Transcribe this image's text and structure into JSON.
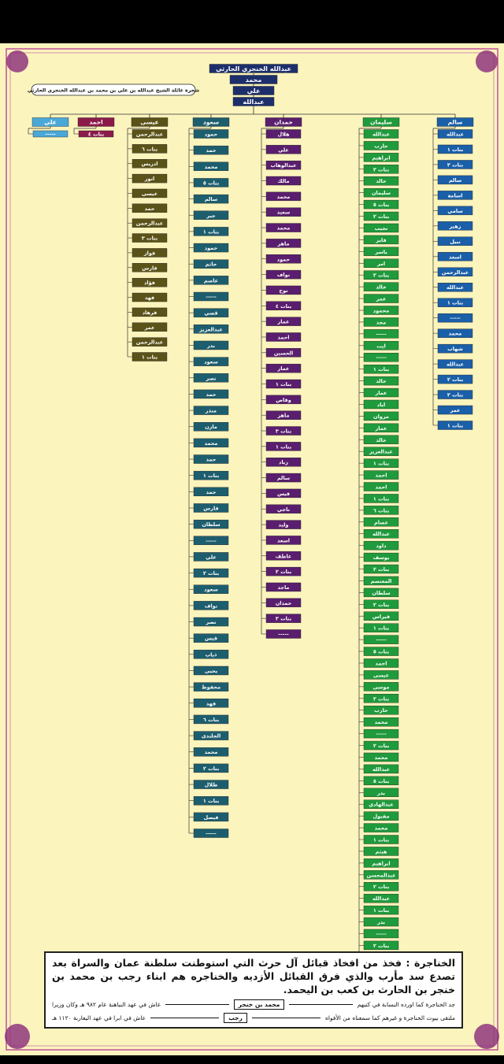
{
  "header": {
    "names": [
      "عبدالله الخنجري الحارثي",
      "محمد",
      "علي",
      "عبدالله"
    ],
    "subtitle": "شجرة عائلة الشيخ عبدالله بن علي بن محمد بن عبدالله الخنجري الحارثي"
  },
  "columns": [
    {
      "head": "سالم",
      "children": [
        "عبدالله",
        "بنات ١",
        "بنات ٢",
        "سالم",
        "اسامة",
        "سامي",
        "زهير",
        "نبيل",
        "اسعد",
        "عبدالرحمن",
        "عبدالله",
        "بنات ١",
        "-----",
        "محمد",
        "شهاب",
        "عبدالله",
        "بنات ٢",
        "بنات ٢",
        "عمر",
        "بنات ١"
      ]
    },
    {
      "head": "سليمان",
      "children": [
        "عبدالله",
        "حارب",
        "ابراهيم",
        "بنات ٢",
        "خالد",
        "سليمان",
        "بنات ٥",
        "بنات ٢",
        "نجيب",
        "فايز",
        "ياسر",
        "امر",
        "بنات ٢",
        "خالد",
        "عمر",
        "محمود",
        "مجد",
        "-----",
        "ايت",
        "-----",
        "بنات ١",
        "خالد",
        "عمار",
        "اياد",
        "مروان",
        "عمار",
        "خالد",
        "عبدالعزيز",
        "بنات ١",
        "احمد",
        "احمد",
        "بنات ١",
        "بنات ٦",
        "عصام",
        "عبدالله",
        "داود",
        "يوسف",
        "بنات ٢",
        "المعتصم",
        "سلطان",
        "بنات ٢",
        "فيراس",
        "بنات ١",
        "-----",
        "بنات ٥",
        "احمد",
        "عيسى",
        "موسى",
        "بنات ٢",
        "حارب",
        "محمد",
        "-----",
        "بنات ٢",
        "محمد",
        "عبدالله",
        "بنات ٥",
        "بدر",
        "عبدالهادي",
        "مقبول",
        "محمد",
        "بنات ١",
        "هيثم",
        "ابراهيم",
        "عبدالمحسن",
        "بنات ٢",
        "عبدالله",
        "بنات ١",
        "بدر",
        "-----",
        "بنات ٢",
        "محمد",
        "احمد",
        "طارق",
        "تيمور",
        "بنات ٤",
        "ترطي"
      ]
    },
    {
      "head": "حمدان",
      "children": [
        "هلال",
        "علي",
        "عبدالوهاب",
        "مالك",
        "محمد",
        "سعيد",
        "محمد",
        "ماهر",
        "حمود",
        "نواف",
        "نوح",
        "بنات ٤",
        "عمار",
        "احمد",
        "الحسين",
        "عمار",
        "بنات ١",
        "وقاص",
        "ماهر",
        "بنات ٣",
        "بنات ١",
        "زياد",
        "سالم",
        "قيس",
        "ناجي",
        "وليد",
        "اسعد",
        "عاطف",
        "بنات ٢",
        "ماجد",
        "حمدان",
        "بنات ٢",
        "-----"
      ]
    },
    {
      "head": "سعود",
      "children": [
        "حمود",
        "حمد",
        "محمد",
        "بنات ٥",
        "سالم",
        "جبر",
        "بنات ١",
        "حمود",
        "حاتم",
        "عاصم",
        "-----",
        "قصي",
        "عبدالعزيز",
        "بدر",
        "سعود",
        "نصر",
        "حمد",
        "منذر",
        "مازن",
        "محمد",
        "حمد",
        "بنات ١",
        "حمد",
        "فارس",
        "سلطان",
        "-----",
        "علي",
        "بنات ٢",
        "سعود",
        "نواف",
        "نصر",
        "قيس",
        "ذياب",
        "يحيى",
        "محفوظ",
        "فهد",
        "بنات ٦",
        "الجلندى",
        "محمد",
        "بنات ٢",
        "طلال",
        "بنات ١",
        "فيصل",
        "-----"
      ]
    },
    {
      "head": "عيسى",
      "children": [
        "عبدالرحمن",
        "بنات ٦",
        "ادريس",
        "انور",
        "عيسى",
        "حمد",
        "عبدالرحمن",
        "بنات ٣",
        "فواز",
        "فارس",
        "فؤاد",
        "فهد",
        "فرهاد",
        "عمر",
        "عبدالرحمن",
        "بنات ١"
      ]
    },
    {
      "head": "احمد",
      "children": [
        "بنات ٤"
      ]
    },
    {
      "head": "علي",
      "children": [
        "-----"
      ]
    }
  ],
  "footer": {
    "text": "الخناجرة : فخذ من افخاذ قبائل آل حرث التي استوطنت سلطنة عمان والسراة بعد تصدع سد مأرب والذي فرق القبائل الأزديه والخناجره هم ابناء رجب بن محمد بن خنجر بن الحارث بن كعب بن اليحمد.",
    "rows": [
      {
        "note": "جد الخناجرة كما اورده النسابة في كتبهم",
        "name": "محمد بن خنجر",
        "era": "عاش في عهد النباهنة عام ٩٨٢ هـ وكان وزيرا"
      },
      {
        "note": "ملتقى بيوت الخناجرة و غيرهم كما سمعناه من الأفواه",
        "name": "رجب",
        "era": "عاش في ابرا في عهد اليعاربة ١١٢٠ هـ"
      }
    ]
  }
}
